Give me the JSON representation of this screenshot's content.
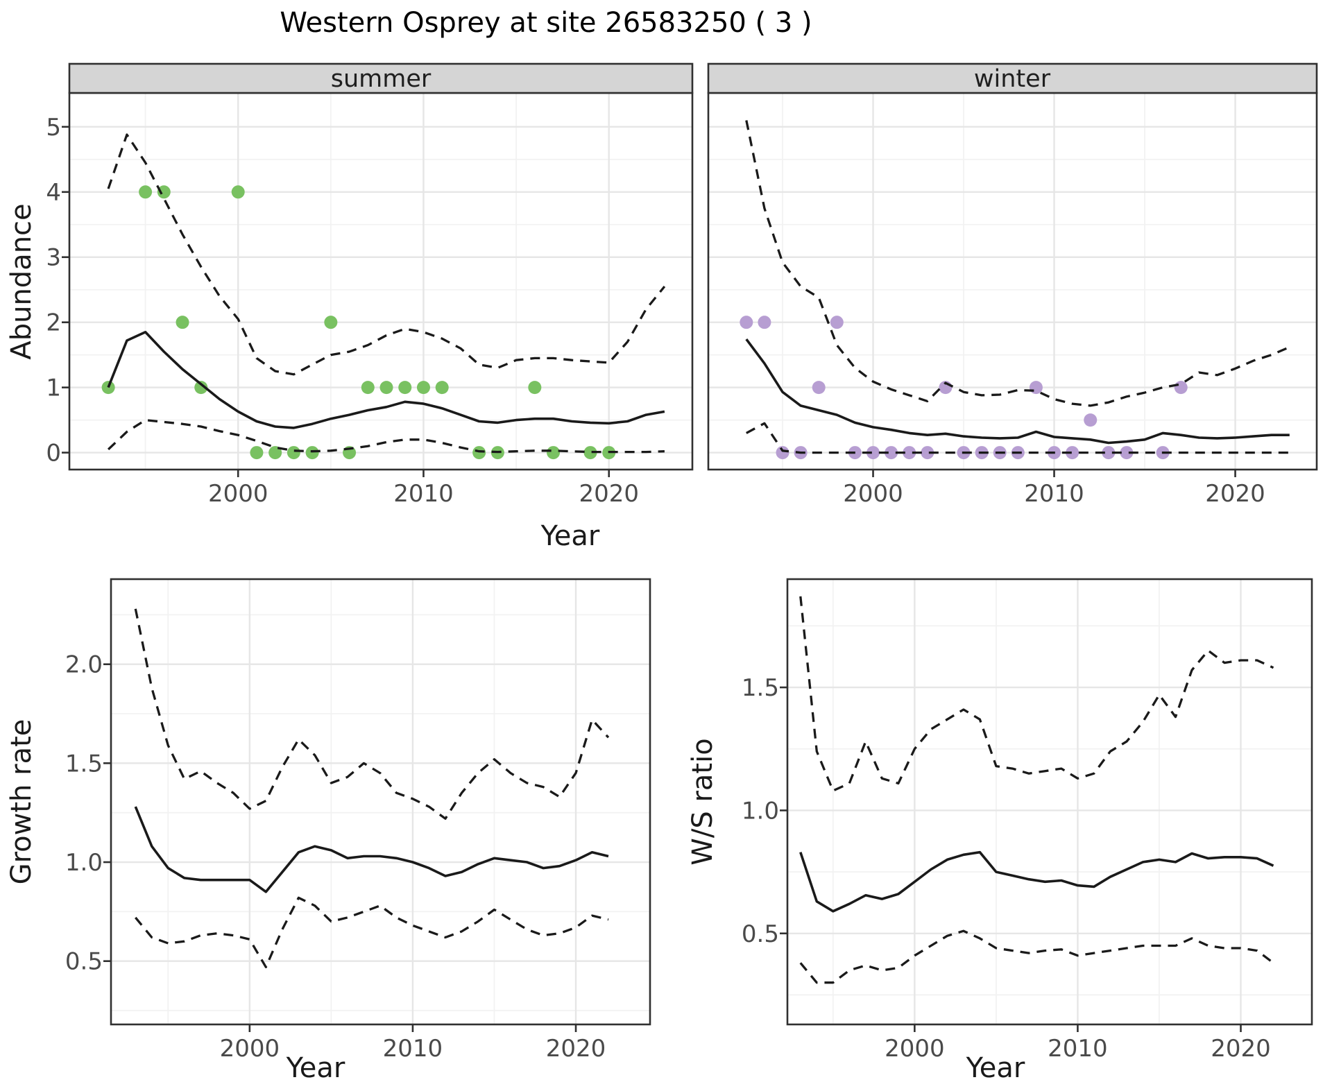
{
  "title": "Western Osprey at site 26583250 ( 3 )",
  "axis_titles": {
    "x": "Year",
    "y_abundance": "Abundance",
    "y_growth": "Growth rate",
    "y_ws": "W/S ratio"
  },
  "facets": [
    {
      "label": "summer"
    },
    {
      "label": "winter"
    }
  ],
  "colors": {
    "summer_points": "#79c161",
    "winter_points": "#b79ed2",
    "line": "#1a1a1a",
    "strip_bg": "#d5d5d5",
    "panel_border": "#303030",
    "grid_major": "#e6e6e6",
    "grid_minor": "#f2f2f2",
    "tick_text": "#4a4a4a"
  },
  "chart_data": [
    {
      "id": "abundance_summer",
      "type": "line",
      "facet_label": "summer",
      "xlabel": "Year",
      "ylabel": "Abundance",
      "x_ticks": [
        2000,
        2010,
        2020
      ],
      "x_tick_labels": [
        "2000",
        "2010",
        "2020"
      ],
      "y_ticks": [
        0,
        1,
        2,
        3,
        4,
        5
      ],
      "y_tick_labels": [
        "0",
        "1",
        "2",
        "3",
        "4",
        "5"
      ],
      "xlim": [
        1990.9,
        2024.5
      ],
      "ylim": [
        -0.26,
        5.52
      ],
      "grid": true,
      "years": [
        1993,
        1994,
        1995,
        1996,
        1997,
        1998,
        1999,
        2000,
        2001,
        2002,
        2003,
        2004,
        2005,
        2006,
        2007,
        2008,
        2009,
        2010,
        2011,
        2012,
        2013,
        2014,
        2015,
        2016,
        2017,
        2018,
        2019,
        2020,
        2021,
        2022,
        2023
      ],
      "series": [
        {
          "name": "median",
          "style": "solid",
          "values": [
            1.0,
            1.72,
            1.85,
            1.55,
            1.28,
            1.05,
            0.82,
            0.63,
            0.48,
            0.4,
            0.38,
            0.44,
            0.52,
            0.58,
            0.65,
            0.7,
            0.78,
            0.75,
            0.68,
            0.58,
            0.48,
            0.46,
            0.5,
            0.52,
            0.52,
            0.48,
            0.46,
            0.45,
            0.48,
            0.58,
            0.63
          ]
        },
        {
          "name": "upper_95ci",
          "style": "dashed",
          "values": [
            4.05,
            4.88,
            4.45,
            3.9,
            3.35,
            2.85,
            2.4,
            2.05,
            1.45,
            1.25,
            1.2,
            1.35,
            1.5,
            1.55,
            1.65,
            1.8,
            1.9,
            1.85,
            1.75,
            1.6,
            1.35,
            1.3,
            1.42,
            1.45,
            1.45,
            1.42,
            1.4,
            1.38,
            1.7,
            2.2,
            2.55
          ]
        },
        {
          "name": "lower_95ci",
          "style": "dashed",
          "values": [
            0.05,
            0.32,
            0.5,
            0.47,
            0.44,
            0.4,
            0.33,
            0.27,
            0.18,
            0.08,
            0.03,
            0.02,
            0.03,
            0.06,
            0.1,
            0.16,
            0.2,
            0.2,
            0.15,
            0.08,
            0.02,
            0.01,
            0.02,
            0.03,
            0.03,
            0.02,
            0.01,
            0.01,
            0.01,
            0.01,
            0.02
          ]
        }
      ],
      "points": {
        "name": "observed_counts",
        "data": [
          [
            1993,
            1
          ],
          [
            1995,
            4
          ],
          [
            1996,
            4
          ],
          [
            1997,
            2
          ],
          [
            1998,
            1
          ],
          [
            2000,
            4
          ],
          [
            2001,
            0
          ],
          [
            2002,
            0
          ],
          [
            2003,
            0
          ],
          [
            2004,
            0
          ],
          [
            2005,
            2
          ],
          [
            2006,
            0
          ],
          [
            2007,
            1
          ],
          [
            2008,
            1
          ],
          [
            2009,
            1
          ],
          [
            2010,
            1
          ],
          [
            2011,
            1
          ],
          [
            2013,
            0
          ],
          [
            2014,
            0
          ],
          [
            2016,
            1
          ],
          [
            2017,
            0
          ],
          [
            2019,
            0
          ],
          [
            2020,
            0
          ]
        ]
      }
    },
    {
      "id": "abundance_winter",
      "type": "line",
      "facet_label": "winter",
      "xlabel": "Year",
      "ylabel": "Abundance",
      "x_ticks": [
        2000,
        2010,
        2020
      ],
      "x_tick_labels": [
        "2000",
        "2010",
        "2020"
      ],
      "y_ticks": [
        0,
        1,
        2,
        3,
        4,
        5
      ],
      "y_tick_labels": [
        "0",
        "1",
        "2",
        "3",
        "4",
        "5"
      ],
      "xlim": [
        1990.9,
        2024.5
      ],
      "ylim": [
        -0.26,
        5.52
      ],
      "grid": true,
      "years": [
        1993,
        1994,
        1995,
        1996,
        1997,
        1998,
        1999,
        2000,
        2001,
        2002,
        2003,
        2004,
        2005,
        2006,
        2007,
        2008,
        2009,
        2010,
        2011,
        2012,
        2013,
        2014,
        2015,
        2016,
        2017,
        2018,
        2019,
        2020,
        2021,
        2022,
        2023
      ],
      "series": [
        {
          "name": "median",
          "style": "solid",
          "values": [
            1.74,
            1.37,
            0.93,
            0.72,
            0.65,
            0.58,
            0.46,
            0.39,
            0.35,
            0.3,
            0.27,
            0.29,
            0.25,
            0.23,
            0.22,
            0.23,
            0.32,
            0.24,
            0.22,
            0.2,
            0.15,
            0.17,
            0.2,
            0.3,
            0.27,
            0.23,
            0.22,
            0.23,
            0.25,
            0.27,
            0.27
          ]
        },
        {
          "name": "upper_95ci",
          "style": "dashed",
          "values": [
            5.1,
            3.75,
            2.92,
            2.55,
            2.38,
            1.65,
            1.3,
            1.09,
            0.97,
            0.88,
            0.79,
            1.07,
            0.93,
            0.88,
            0.89,
            0.96,
            0.95,
            0.82,
            0.75,
            0.72,
            0.77,
            0.86,
            0.92,
            1.0,
            1.05,
            1.23,
            1.19,
            1.29,
            1.41,
            1.5,
            1.62
          ]
        },
        {
          "name": "lower_95ci",
          "style": "dashed",
          "values": [
            0.3,
            0.45,
            0.03,
            0,
            0,
            0,
            0,
            0,
            0,
            0,
            0,
            0,
            0,
            0,
            0,
            0,
            0,
            0,
            0,
            0,
            0,
            0,
            0,
            0,
            0,
            0,
            0,
            0,
            0,
            0,
            0
          ]
        }
      ],
      "points": {
        "name": "observed_counts",
        "data": [
          [
            1993,
            2
          ],
          [
            1994,
            2
          ],
          [
            1995,
            0
          ],
          [
            1996,
            0
          ],
          [
            1997,
            1
          ],
          [
            1998,
            2
          ],
          [
            1999,
            0
          ],
          [
            2000,
            0
          ],
          [
            2001,
            0
          ],
          [
            2002,
            0
          ],
          [
            2003,
            0
          ],
          [
            2004,
            1
          ],
          [
            2005,
            0
          ],
          [
            2006,
            0
          ],
          [
            2007,
            0
          ],
          [
            2008,
            0
          ],
          [
            2009,
            1
          ],
          [
            2010,
            0
          ],
          [
            2011,
            0
          ],
          [
            2012,
            0.5
          ],
          [
            2013,
            0
          ],
          [
            2014,
            0
          ],
          [
            2016,
            0
          ],
          [
            2017,
            1
          ]
        ]
      }
    },
    {
      "id": "growth_rate",
      "type": "line",
      "xlabel": "Year",
      "ylabel": "Growth rate",
      "x_ticks": [
        2000,
        2010,
        2020
      ],
      "x_tick_labels": [
        "2000",
        "2010",
        "2020"
      ],
      "y_ticks": [
        0.5,
        1.0,
        1.5,
        2.0
      ],
      "y_tick_labels": [
        "0.5",
        "1.0",
        "1.5",
        "2.0"
      ],
      "xlim": [
        1991.5,
        2024.55
      ],
      "ylim": [
        0.18,
        2.43
      ],
      "grid": true,
      "years": [
        1993,
        1994,
        1995,
        1996,
        1997,
        1998,
        1999,
        2000,
        2001,
        2002,
        2003,
        2004,
        2005,
        2006,
        2007,
        2008,
        2009,
        2010,
        2011,
        2012,
        2013,
        2014,
        2015,
        2016,
        2017,
        2018,
        2019,
        2020,
        2021,
        2022
      ],
      "series": [
        {
          "name": "median",
          "style": "solid",
          "values": [
            1.28,
            1.08,
            0.97,
            0.92,
            0.91,
            0.91,
            0.91,
            0.91,
            0.85,
            0.95,
            1.05,
            1.08,
            1.06,
            1.02,
            1.03,
            1.03,
            1.02,
            1.0,
            0.97,
            0.93,
            0.95,
            0.99,
            1.02,
            1.01,
            1.0,
            0.97,
            0.98,
            1.01,
            1.05,
            1.03
          ]
        },
        {
          "name": "upper_95ci",
          "style": "dashed",
          "values": [
            2.28,
            1.88,
            1.59,
            1.42,
            1.46,
            1.4,
            1.35,
            1.27,
            1.31,
            1.48,
            1.62,
            1.54,
            1.4,
            1.43,
            1.5,
            1.45,
            1.35,
            1.32,
            1.28,
            1.22,
            1.35,
            1.45,
            1.52,
            1.45,
            1.4,
            1.38,
            1.33,
            1.45,
            1.72,
            1.63
          ]
        },
        {
          "name": "lower_95ci",
          "style": "dashed",
          "values": [
            0.72,
            0.62,
            0.59,
            0.6,
            0.63,
            0.64,
            0.63,
            0.61,
            0.47,
            0.66,
            0.82,
            0.78,
            0.7,
            0.72,
            0.75,
            0.78,
            0.72,
            0.68,
            0.65,
            0.62,
            0.65,
            0.7,
            0.76,
            0.71,
            0.66,
            0.63,
            0.64,
            0.67,
            0.73,
            0.71
          ]
        }
      ]
    },
    {
      "id": "ws_ratio",
      "type": "line",
      "xlabel": "Year",
      "ylabel": "W/S ratio",
      "x_ticks": [
        2000,
        2010,
        2020
      ],
      "x_tick_labels": [
        "2000",
        "2010",
        "2020"
      ],
      "y_ticks": [
        0.5,
        1.0,
        1.5
      ],
      "y_tick_labels": [
        "0.5",
        "1.0",
        "1.5"
      ],
      "xlim": [
        1992.2,
        2024.36
      ],
      "ylim": [
        0.13,
        1.94
      ],
      "grid": true,
      "years": [
        1993,
        1994,
        1995,
        1996,
        1997,
        1998,
        1999,
        2000,
        2001,
        2002,
        2003,
        2004,
        2005,
        2006,
        2007,
        2008,
        2009,
        2010,
        2011,
        2012,
        2013,
        2014,
        2015,
        2016,
        2017,
        2018,
        2019,
        2020,
        2021,
        2022
      ],
      "series": [
        {
          "name": "median",
          "style": "solid",
          "values": [
            0.83,
            0.63,
            0.59,
            0.62,
            0.655,
            0.64,
            0.66,
            0.71,
            0.76,
            0.8,
            0.82,
            0.83,
            0.75,
            0.735,
            0.72,
            0.71,
            0.715,
            0.695,
            0.69,
            0.73,
            0.76,
            0.79,
            0.8,
            0.79,
            0.825,
            0.805,
            0.81,
            0.81,
            0.805,
            0.775
          ]
        },
        {
          "name": "upper_95ci",
          "style": "dashed",
          "values": [
            1.87,
            1.24,
            1.08,
            1.11,
            1.28,
            1.13,
            1.11,
            1.25,
            1.33,
            1.37,
            1.41,
            1.37,
            1.18,
            1.17,
            1.15,
            1.16,
            1.17,
            1.13,
            1.15,
            1.24,
            1.28,
            1.36,
            1.47,
            1.38,
            1.57,
            1.65,
            1.6,
            1.61,
            1.61,
            1.58
          ]
        },
        {
          "name": "lower_95ci",
          "style": "dashed",
          "values": [
            0.38,
            0.3,
            0.3,
            0.35,
            0.37,
            0.35,
            0.36,
            0.41,
            0.45,
            0.49,
            0.51,
            0.48,
            0.44,
            0.43,
            0.42,
            0.43,
            0.435,
            0.41,
            0.42,
            0.43,
            0.44,
            0.45,
            0.45,
            0.45,
            0.48,
            0.45,
            0.44,
            0.44,
            0.43,
            0.38
          ]
        }
      ]
    }
  ]
}
